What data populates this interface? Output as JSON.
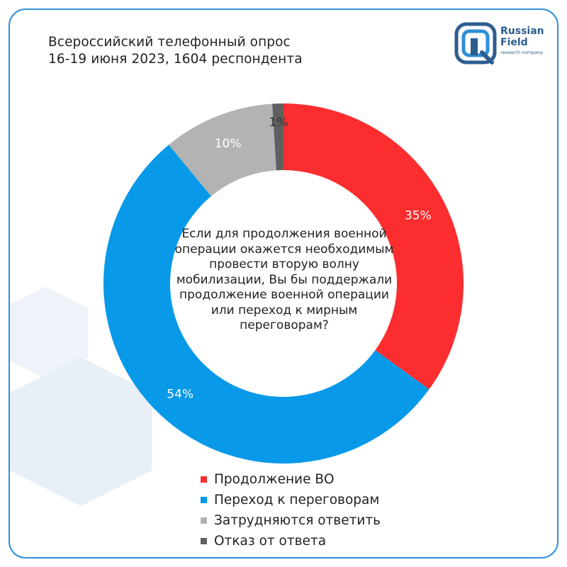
{
  "header": {
    "survey_line1": "Всероссийский телефонный опрос",
    "survey_line2": "16-19 июня 2023, 1604 респондента"
  },
  "logo": {
    "name_line1": "Russian",
    "name_line2": "Field",
    "tagline": "research company"
  },
  "colors": {
    "red": "#fb2d2f",
    "blue": "#0899e8",
    "gray": "#b3b3b3",
    "dark": "#5f5f5f",
    "brand": "#2d5d8f"
  },
  "chart_data": {
    "type": "pie",
    "title": "Если для продолжения военной операции окажется необходимым провести вторую волну мобилизации, Вы бы поддержали продолжение военной операции или переход к мирным переговорам?",
    "categories": [
      "Продолжение ВО",
      "Переход к переговорам",
      "Затрудняются ответить",
      "Отказ от ответа"
    ],
    "values": [
      35,
      54,
      10,
      1
    ],
    "labels": [
      "35%",
      "54%",
      "10%",
      "1%"
    ],
    "colors": [
      "#fb2d2f",
      "#0899e8",
      "#b3b3b3",
      "#5f5f5f"
    ],
    "legend_position": "bottom"
  }
}
